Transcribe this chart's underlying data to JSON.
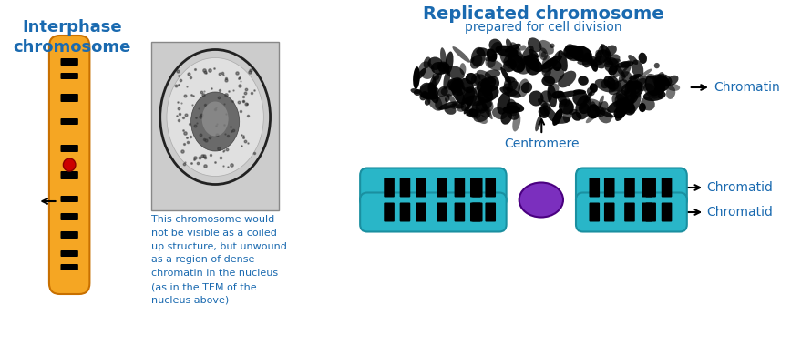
{
  "title_left": "Interphase\nchromosome",
  "title_right": "Replicated chromosome",
  "subtitle_right": "prepared for cell division",
  "label_chromatin": "Chromatin",
  "label_centromere": "Centromere",
  "label_chromatid1": "Chromatid",
  "label_chromatid2": "Chromatid",
  "desc_text": "This chromosome would\nnot be visible as a coiled\nup structure, but unwound\nas a region of dense\nchromatin in the nucleus\n(as in the TEM of the\nnucleus above)",
  "blue_title_color": "#1a6ab0",
  "cyan_color": "#29b6c8",
  "black_color": "#000000",
  "orange_color": "#f5a623",
  "dark_orange_color": "#c87000",
  "red_color": "#cc0000",
  "purple_color": "#7b2fbe",
  "bg_color": "#ffffff"
}
